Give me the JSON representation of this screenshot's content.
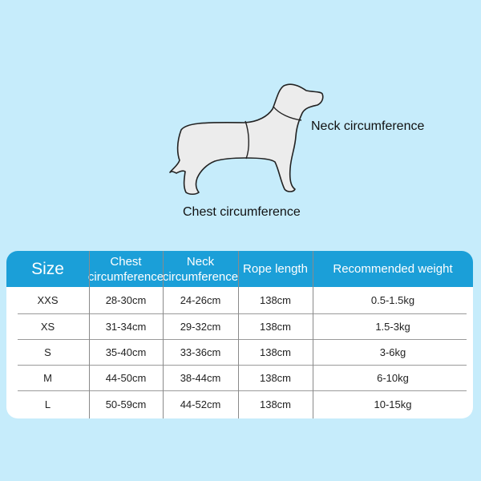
{
  "diagram": {
    "neck_label": "Neck circumference",
    "chest_label": "Chest circumference"
  },
  "table": {
    "header_color": "#1b9fd8",
    "headers": [
      "Size",
      "Chest circumference",
      "Neck circumference",
      "Rope length",
      "Recommended weight"
    ],
    "rows": [
      [
        "XXS",
        "28-30cm",
        "24-26cm",
        "138cm",
        "0.5-1.5kg"
      ],
      [
        "XS",
        "31-34cm",
        "29-32cm",
        "138cm",
        "1.5-3kg"
      ],
      [
        "S",
        "35-40cm",
        "33-36cm",
        "138cm",
        "3-6kg"
      ],
      [
        "M",
        "44-50cm",
        "38-44cm",
        "138cm",
        "6-10kg"
      ],
      [
        "L",
        "50-59cm",
        "44-52cm",
        "138cm",
        "10-15kg"
      ]
    ]
  }
}
